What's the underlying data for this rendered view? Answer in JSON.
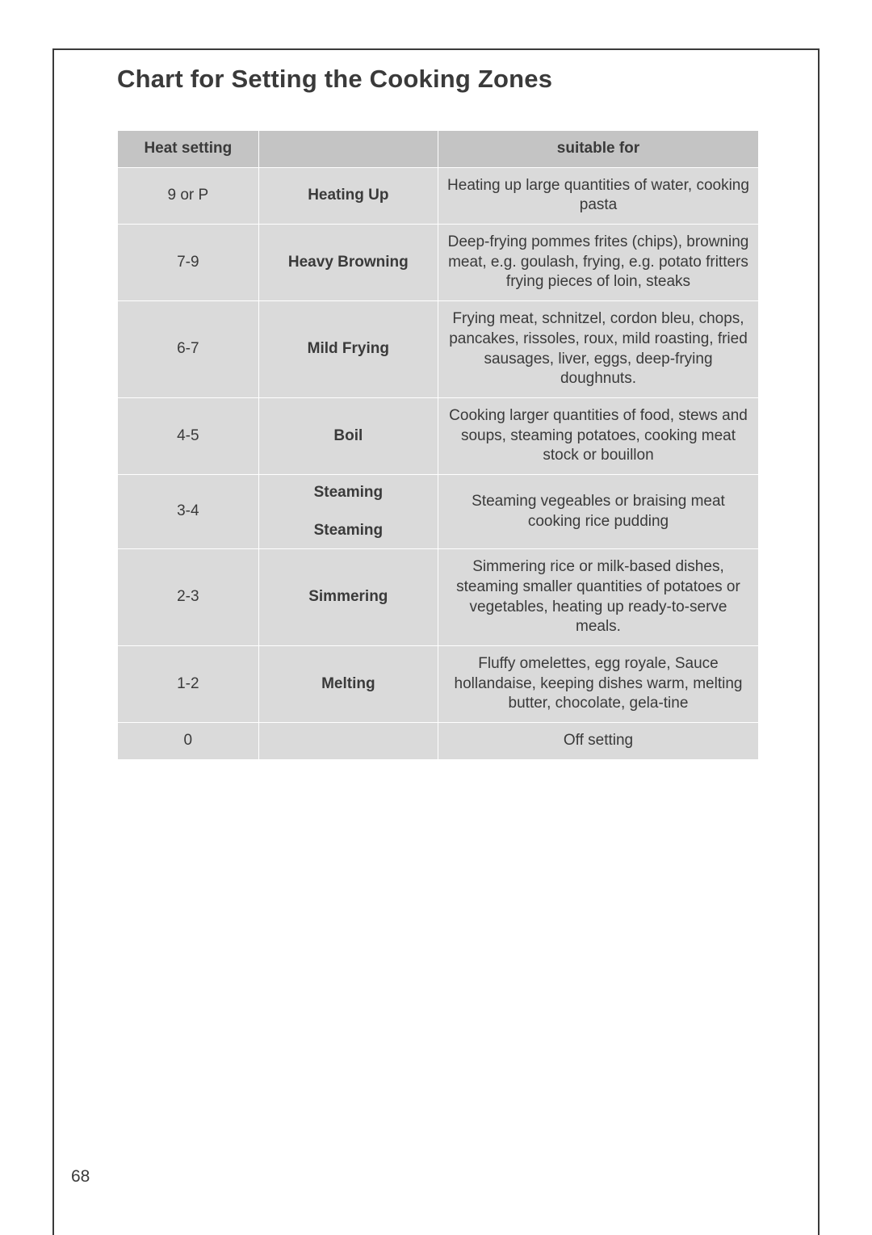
{
  "title": "Chart for Setting the Cooking Zones",
  "page_number": "68",
  "table": {
    "header_bg": "#c4c4c4",
    "row_bg": "#dadada",
    "border_color": "#ffffff",
    "text_color": "#3a3a3a",
    "columns": {
      "heat_setting": "Heat setting",
      "method": "",
      "suitable_for": "suitable for"
    },
    "rows": [
      {
        "setting": "9 or P",
        "method": "Heating Up",
        "suitable": "Heating up large quantities of water, cooking pasta"
      },
      {
        "setting": "7-9",
        "method": "Heavy Browning",
        "suitable": "Deep-frying pommes frites (chips), browning meat, e.g. goulash, frying, e.g. potato fritters frying pieces of loin, steaks"
      },
      {
        "setting": "6-7",
        "method": "Mild Frying",
        "suitable": "Frying meat, schnitzel, cordon bleu, chops, pancakes, rissoles, roux, mild roasting, fried sausages, liver, eggs, deep-frying doughnuts."
      },
      {
        "setting": "4-5",
        "method": "Boil",
        "suitable": "Cooking larger quantities of food, stews and soups, steaming potatoes, cooking meat stock or bouillon"
      },
      {
        "setting": "3-4",
        "method_a": "Steaming",
        "method_b": "Steaming",
        "suitable": "Steaming vegeables or braising meat cooking rice pudding"
      },
      {
        "setting": "2-3",
        "method": "Simmering",
        "suitable": "Simmering rice or milk-based dishes, steaming smaller quantities of potatoes or vegetables, heating up ready-to-serve meals."
      },
      {
        "setting": "1-2",
        "method": "Melting",
        "suitable": "Fluffy omelettes, egg royale, Sauce hollandaise, keeping dishes warm, melting butter, chocolate, gela-tine"
      },
      {
        "setting": "0",
        "method": "",
        "suitable": "Off setting"
      }
    ]
  }
}
